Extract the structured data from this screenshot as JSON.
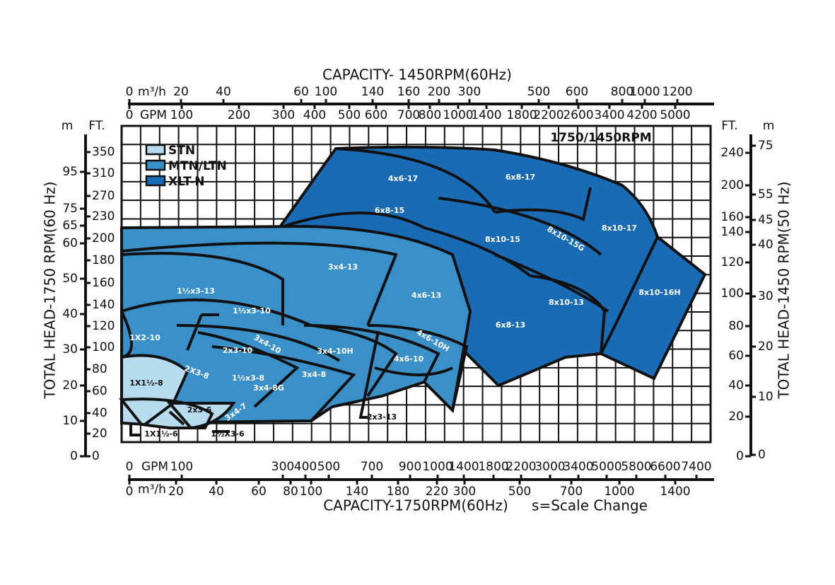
{
  "top_title": "CAPACITY- 1450RPM(60Hz)",
  "top_m3h": {
    "unit": "m³/h",
    "ticks": [
      0,
      20,
      40,
      60,
      100,
      140,
      160,
      200,
      300,
      500,
      600,
      800,
      1000,
      1200
    ]
  },
  "top_gpm": {
    "unit": "GPM",
    "ticks": [
      0,
      100,
      200,
      300,
      400,
      500,
      600,
      700,
      800,
      1000,
      1400,
      1800,
      2200,
      2600,
      3400,
      4200,
      5000
    ]
  },
  "bottom_gpm": {
    "unit": "GPM",
    "ticks": [
      0,
      100,
      300,
      400,
      500,
      700,
      900,
      1000,
      1400,
      1800,
      2200,
      3000,
      3400,
      5000,
      5800,
      6600,
      7400
    ]
  },
  "bottom_m3h": {
    "unit": "m³/h",
    "ticks": [
      0,
      20,
      40,
      60,
      80,
      100,
      140,
      180,
      220,
      300,
      500,
      700,
      1000,
      1400
    ]
  },
  "bottom_title": "CAPACITY-1750RPM(60Hz)",
  "scale_note": "s=Scale Change",
  "left_title": "TOTAL HEAD-1750 RPM(60 Hz)",
  "left_m": {
    "unit": "m",
    "ticks": [
      95,
      75,
      65,
      60,
      50,
      40,
      30,
      20,
      10,
      0
    ]
  },
  "left_ft": {
    "unit": "FT.",
    "ticks": [
      350,
      310,
      270,
      230,
      200,
      180,
      160,
      140,
      120,
      100,
      80,
      60,
      40,
      20,
      0
    ]
  },
  "right_title": "TOTAL HEAD-1450 RPM(50 Hz)",
  "right_ft": {
    "unit": "FT.",
    "ticks": [
      240,
      200,
      160,
      140,
      120,
      100,
      80,
      60,
      40,
      20,
      0
    ]
  },
  "right_m": {
    "unit": "m",
    "ticks": [
      75,
      55,
      45,
      40,
      30,
      20,
      10,
      0
    ]
  },
  "speed_note": "1750/1450RPM",
  "legend": [
    "STN",
    "MTN/LTN",
    "XLT-N"
  ],
  "regions": [
    "4x6-17",
    "6x8-17",
    "6x8-15",
    "8x10-15",
    "8x10-15G",
    "8x10-17",
    "3x4-13",
    "4x6-13",
    "8x10-13",
    "8x10-16H",
    "6x8-13",
    "1½x3-13",
    "1½x3-10",
    "1X2-10",
    "3x4-10",
    "4x6-10H",
    "2x3-10",
    "3x4-10H",
    "4x6-10",
    "2X3-8",
    "1½x3-8",
    "3x4-8",
    "1X1½-8",
    "3x4-8G",
    "3x4-7",
    "2x3-6",
    "1X1½-6",
    "1½X3-6",
    "2x3-13"
  ]
}
